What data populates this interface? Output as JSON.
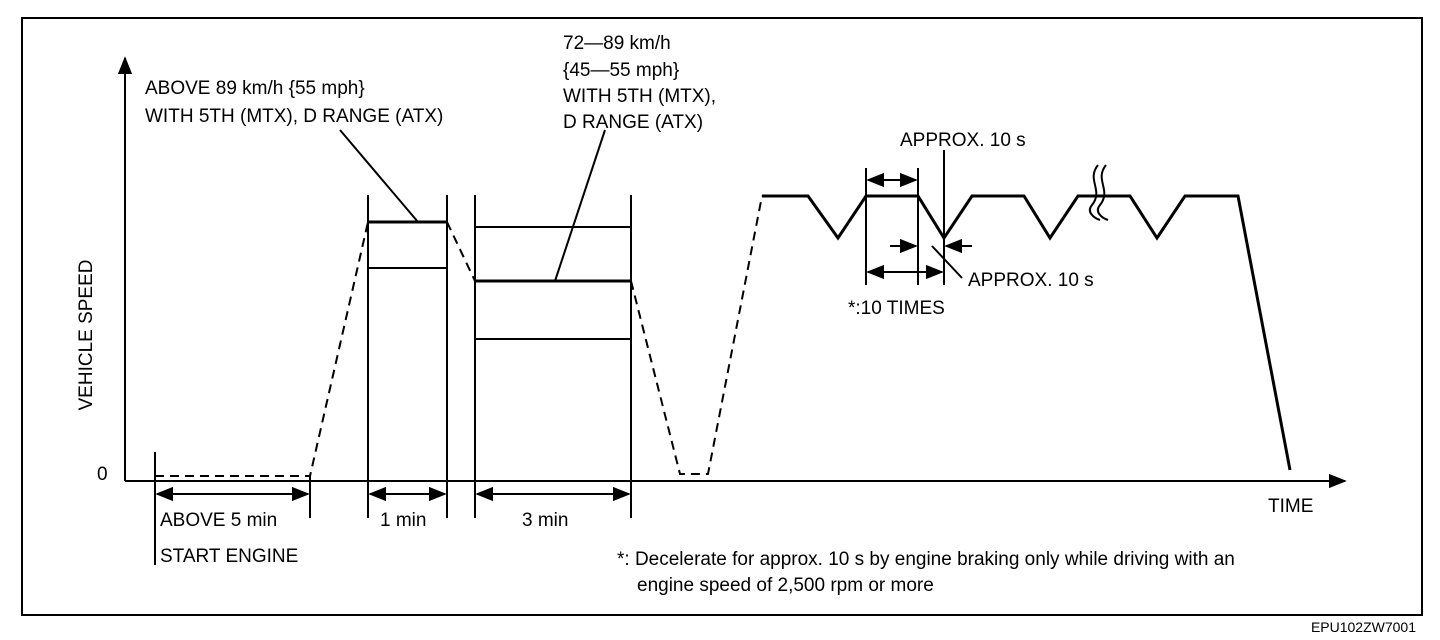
{
  "axes": {
    "y_label": "VEHICLE SPEED",
    "zero": "0",
    "x_label": "TIME"
  },
  "annotations": {
    "high_speed": [
      "ABOVE 89 km/h {55 mph}",
      "WITH 5TH (MTX), D RANGE (ATX)"
    ],
    "mid_speed": [
      "72—89 km/h",
      "{45—55 mph}",
      "WITH 5TH (MTX),",
      "D RANGE (ATX)"
    ],
    "approx_top": "APPROX. 10 s",
    "approx_bottom": "APPROX. 10 s",
    "times": "*:10 TIMES",
    "idle": "ABOVE 5 min",
    "start": "START ENGINE",
    "one_min": "1 min",
    "three_min": "3 min"
  },
  "footnote": [
    "*: Decelerate for approx. 10 s by engine braking only while driving with an",
    "engine speed of 2,500 rpm or more"
  ],
  "code": "EPU102ZW7001"
}
